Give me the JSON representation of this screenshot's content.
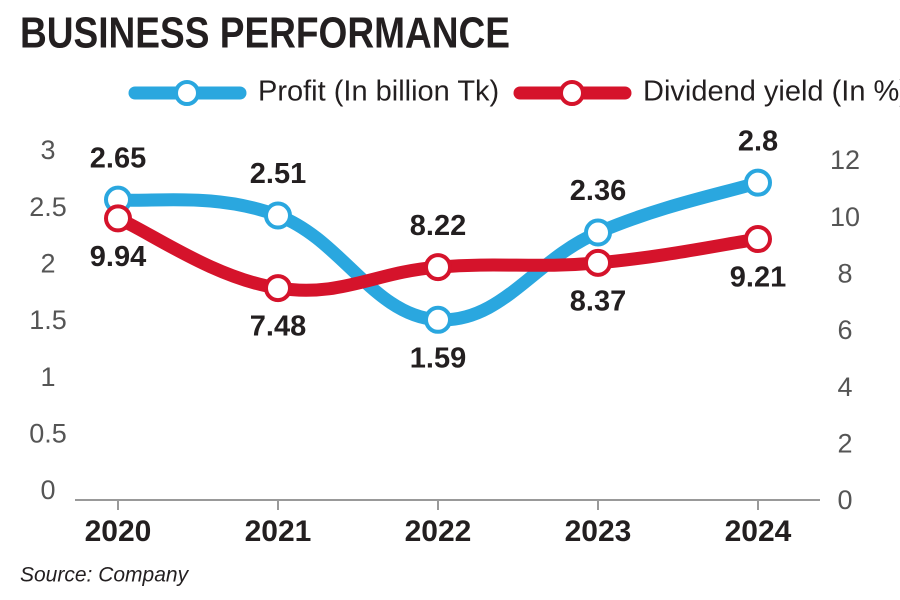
{
  "chart_data": {
    "type": "line",
    "title": "BUSINESS PERFORMANCE",
    "source": "Source: Company",
    "categories": [
      "2020",
      "2021",
      "2022",
      "2023",
      "2024"
    ],
    "series": [
      {
        "name": "Profit (In billion Tk)",
        "color": "#2aa7df",
        "values": [
          2.65,
          2.51,
          1.59,
          2.36,
          2.8
        ]
      },
      {
        "name": "Dividend yield (In %)",
        "color": "#d5132b",
        "axis": "y2",
        "values": [
          9.94,
          7.48,
          8.22,
          8.37,
          9.21
        ]
      }
    ],
    "ylim": [
      0,
      3
    ],
    "yticks": [
      0,
      0.5,
      1,
      1.5,
      2,
      2.5,
      3
    ],
    "y2lim": [
      0,
      12
    ],
    "y2ticks": [
      0,
      2,
      4,
      6,
      8,
      10,
      12
    ],
    "grid": false
  }
}
